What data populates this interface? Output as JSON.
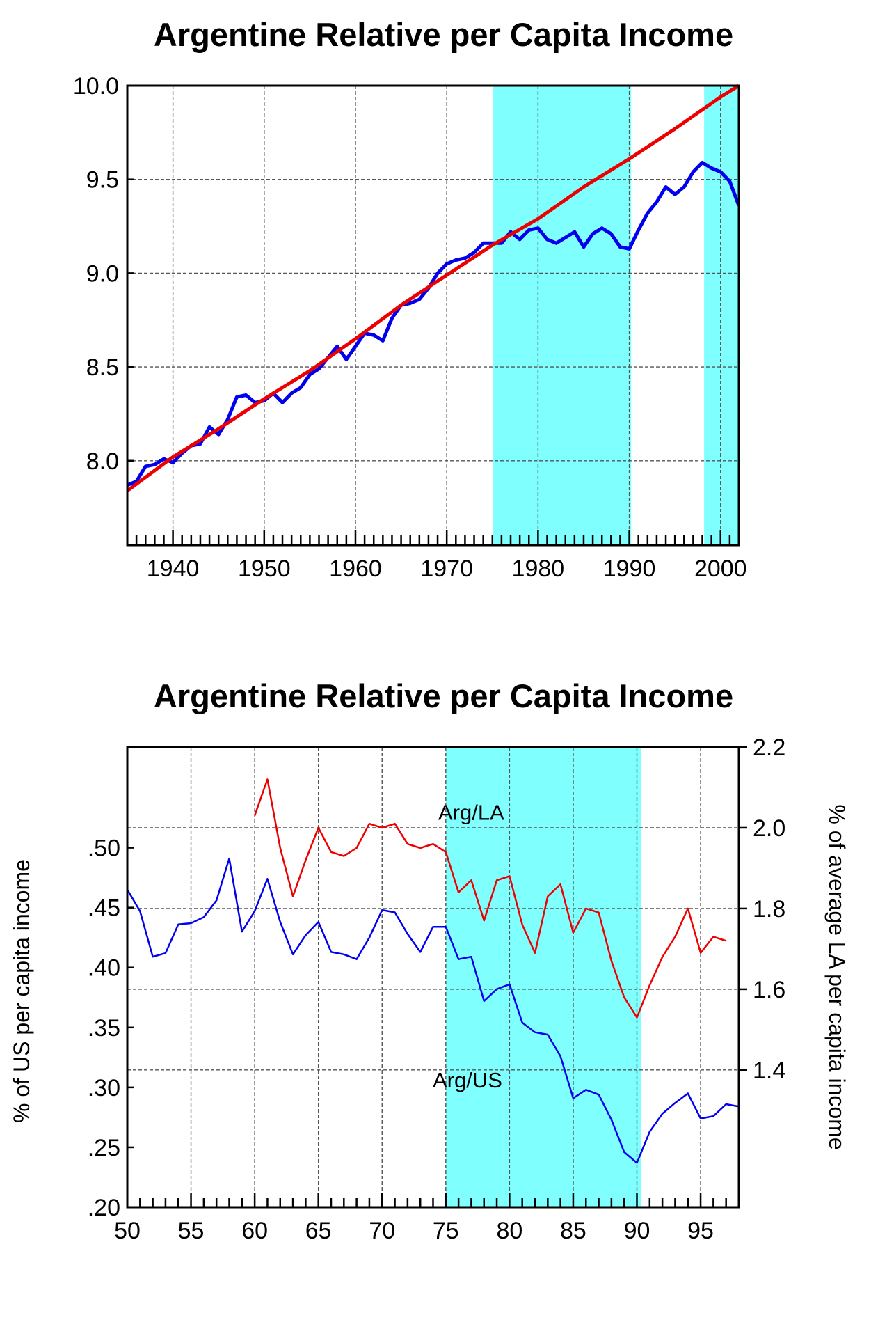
{
  "chart_data": [
    {
      "type": "line",
      "title": "Argentine Relative per Capita Income",
      "xlim": [
        1935,
        2002
      ],
      "ylim": [
        7.55,
        10.0
      ],
      "x_ticks": [
        1940,
        1950,
        1960,
        1970,
        1980,
        1990,
        2000
      ],
      "x_tick_labels": [
        "1940",
        "1950",
        "1960",
        "1970",
        "1980",
        "1990",
        "2000"
      ],
      "y_ticks": [
        8.0,
        8.5,
        9.0,
        9.5,
        10.0
      ],
      "y_tick_labels": [
        "8.0",
        "8.5",
        "9.0",
        "9.5",
        "10.0"
      ],
      "grid": true,
      "shaded_periods": [
        [
          1975.1,
          1990.2
        ],
        [
          1998.2,
          2002
        ]
      ],
      "shade_color": "#80ffff",
      "series": [
        {
          "color": "#0000ee",
          "x": [
            1935,
            1936,
            1937,
            1938,
            1939,
            1940,
            1941,
            1942,
            1943,
            1944,
            1945,
            1946,
            1947,
            1948,
            1949,
            1950,
            1951,
            1952,
            1953,
            1954,
            1955,
            1956,
            1957,
            1958,
            1959,
            1960,
            1961,
            1962,
            1963,
            1964,
            1965,
            1966,
            1967,
            1968,
            1969,
            1970,
            1971,
            1972,
            1973,
            1974,
            1975,
            1976,
            1977,
            1978,
            1979,
            1980,
            1981,
            1982,
            1983,
            1984,
            1985,
            1986,
            1987,
            1988,
            1989,
            1990,
            1991,
            1992,
            1993,
            1994,
            1995,
            1996,
            1997,
            1998,
            1999,
            2000,
            2001,
            2002
          ],
          "values": [
            7.87,
            7.89,
            7.97,
            7.98,
            8.01,
            7.99,
            8.04,
            8.08,
            8.09,
            8.18,
            8.14,
            8.22,
            8.34,
            8.35,
            8.31,
            8.32,
            8.36,
            8.31,
            8.36,
            8.39,
            8.46,
            8.49,
            8.55,
            8.61,
            8.54,
            8.61,
            8.68,
            8.67,
            8.64,
            8.76,
            8.83,
            8.84,
            8.86,
            8.92,
            9.0,
            9.05,
            9.07,
            9.08,
            9.11,
            9.16,
            9.16,
            9.16,
            9.22,
            9.18,
            9.23,
            9.24,
            9.18,
            9.16,
            9.19,
            9.22,
            9.14,
            9.21,
            9.24,
            9.21,
            9.14,
            9.13,
            9.23,
            9.32,
            9.38,
            9.46,
            9.42,
            9.46,
            9.54,
            9.59,
            9.56,
            9.54,
            9.49,
            9.36
          ]
        },
        {
          "color": "#ee0000",
          "x": [
            1935,
            1940,
            1945,
            1950,
            1955,
            1960,
            1965,
            1970,
            1975,
            1980,
            1985,
            1990,
            1995,
            2000,
            2002
          ],
          "values": [
            7.84,
            8.02,
            8.17,
            8.33,
            8.48,
            8.65,
            8.83,
            8.99,
            9.15,
            9.29,
            9.46,
            9.61,
            9.77,
            9.94,
            10.0
          ]
        }
      ]
    },
    {
      "type": "line",
      "title": "Argentine Relative per Capita Income",
      "xlim": [
        50,
        98
      ],
      "ylim_left": [
        0.2,
        0.584
      ],
      "ylim_right": [
        1.06,
        2.2
      ],
      "ylabel_left": "% of US per capita income",
      "ylabel_right": "% of average LA per capita income",
      "x_ticks": [
        50,
        55,
        60,
        65,
        70,
        75,
        80,
        85,
        90,
        95
      ],
      "x_tick_labels": [
        "50",
        "55",
        "60",
        "65",
        "70",
        "75",
        "80",
        "85",
        "90",
        "95"
      ],
      "y_ticks_left": [
        0.2,
        0.25,
        0.3,
        0.35,
        0.4,
        0.45,
        0.5
      ],
      "y_tick_labels_left": [
        ".20",
        ".25",
        ".30",
        ".35",
        ".40",
        ".45",
        ".50"
      ],
      "y_ticks_right": [
        1.4,
        1.6,
        1.8,
        2.0,
        2.2
      ],
      "y_tick_labels_right": [
        "1.4",
        "1.6",
        "1.8",
        "2.0",
        "2.2"
      ],
      "grid": true,
      "shaded_periods": [
        [
          75,
          90.3
        ]
      ],
      "shade_color": "#80ffff",
      "annotations": [
        {
          "text": "Arg/LA",
          "x": 77,
          "y_right": 2.02
        },
        {
          "text": "Arg/US",
          "x": 76.7,
          "y_left": 0.3
        }
      ],
      "series": [
        {
          "name": "Arg/US",
          "axis": "left",
          "color": "#0000ee",
          "x": [
            50,
            51,
            52,
            53,
            54,
            55,
            56,
            57,
            58,
            59,
            60,
            61,
            62,
            63,
            64,
            65,
            66,
            67,
            68,
            69,
            70,
            71,
            72,
            73,
            74,
            75,
            76,
            77,
            78,
            79,
            80,
            81,
            82,
            83,
            84,
            85,
            86,
            87,
            88,
            89,
            90,
            91,
            92,
            93,
            94,
            95,
            96,
            97,
            98
          ],
          "values": [
            0.465,
            0.447,
            0.409,
            0.412,
            0.436,
            0.437,
            0.442,
            0.456,
            0.491,
            0.43,
            0.447,
            0.474,
            0.438,
            0.411,
            0.427,
            0.438,
            0.413,
            0.411,
            0.407,
            0.425,
            0.448,
            0.446,
            0.428,
            0.413,
            0.434,
            0.434,
            0.407,
            0.409,
            0.372,
            0.382,
            0.386,
            0.354,
            0.346,
            0.344,
            0.326,
            0.291,
            0.298,
            0.294,
            0.273,
            0.246,
            0.237,
            0.263,
            0.278,
            0.287,
            0.295,
            0.274,
            0.276,
            0.286,
            0.284
          ]
        },
        {
          "name": "Arg/LA",
          "axis": "right",
          "color": "#ee0000",
          "x": [
            60,
            61,
            62,
            63,
            64,
            65,
            66,
            67,
            68,
            69,
            70,
            71,
            72,
            73,
            74,
            75,
            76,
            77,
            78,
            79,
            80,
            81,
            82,
            83,
            84,
            85,
            86,
            87,
            88,
            89,
            90,
            91,
            92,
            93,
            94,
            95,
            96,
            97
          ],
          "values": [
            2.03,
            2.12,
            1.95,
            1.83,
            1.92,
            2.0,
            1.94,
            1.93,
            1.95,
            2.01,
            2.0,
            2.01,
            1.96,
            1.95,
            1.96,
            1.94,
            1.84,
            1.87,
            1.77,
            1.87,
            1.88,
            1.76,
            1.69,
            1.83,
            1.86,
            1.74,
            1.8,
            1.79,
            1.67,
            1.58,
            1.53,
            1.61,
            1.68,
            1.73,
            1.8,
            1.69,
            1.73,
            1.72
          ]
        }
      ]
    }
  ]
}
